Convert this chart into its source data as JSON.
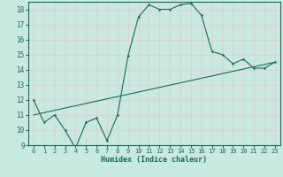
{
  "title": "",
  "xlabel": "Humidex (Indice chaleur)",
  "ylabel": "",
  "bg_color": "#c8e8e0",
  "line_color": "#1a6b5a",
  "grid_color": "#e8c8c8",
  "xlim": [
    -0.5,
    23.5
  ],
  "ylim": [
    9,
    18.5
  ],
  "yticks": [
    9,
    10,
    11,
    12,
    13,
    14,
    15,
    16,
    17,
    18
  ],
  "xticks": [
    0,
    1,
    2,
    3,
    4,
    5,
    6,
    7,
    8,
    9,
    10,
    11,
    12,
    13,
    14,
    15,
    16,
    17,
    18,
    19,
    20,
    21,
    22,
    23
  ],
  "curve1_x": [
    0,
    1,
    2,
    3,
    4,
    5,
    6,
    7,
    8,
    9,
    10,
    11,
    12,
    13,
    14,
    15,
    16,
    17,
    18,
    19,
    20,
    21,
    22,
    23
  ],
  "curve1_y": [
    12.0,
    10.5,
    11.0,
    10.0,
    8.8,
    10.5,
    10.8,
    9.3,
    11.0,
    14.9,
    17.5,
    18.3,
    18.0,
    18.0,
    18.3,
    18.4,
    17.6,
    15.2,
    15.0,
    14.4,
    14.7,
    14.1,
    14.1,
    14.5
  ],
  "curve2_x": [
    0,
    23
  ],
  "curve2_y": [
    11.0,
    14.5
  ]
}
